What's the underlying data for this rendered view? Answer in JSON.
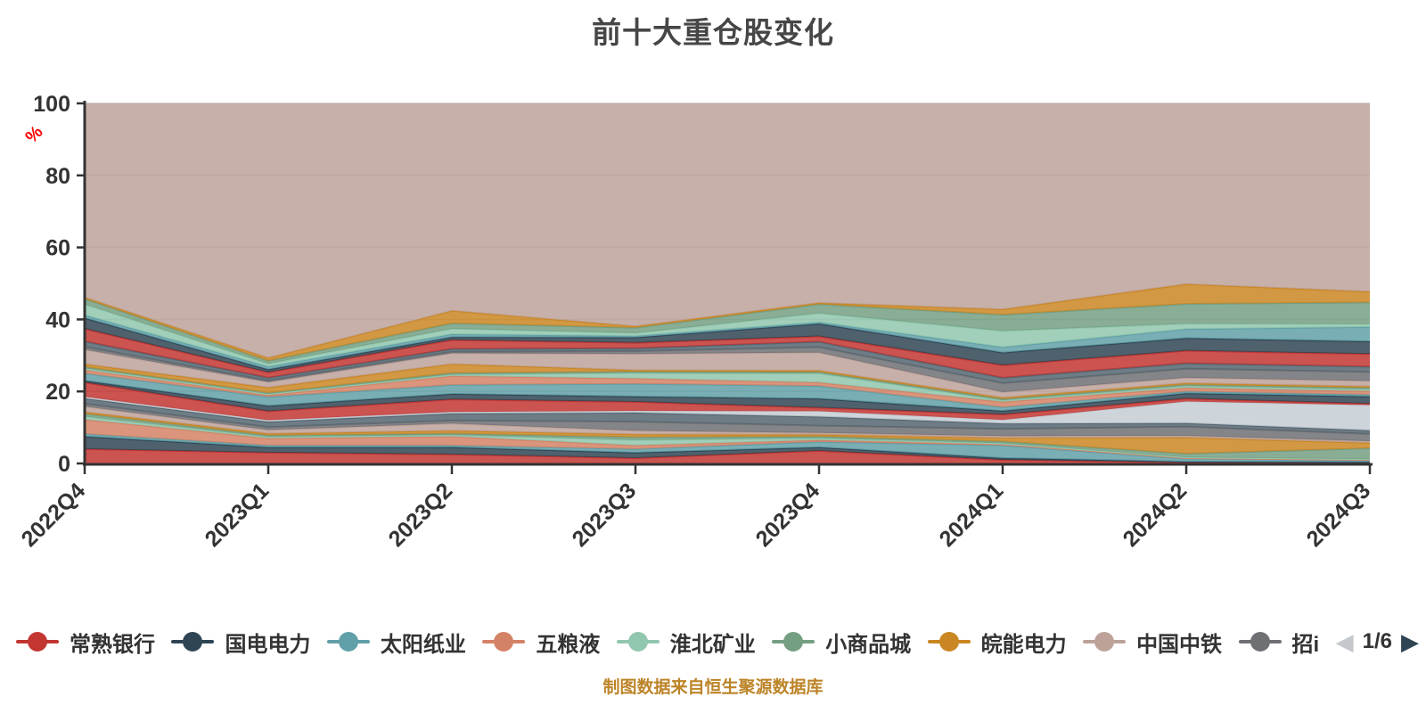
{
  "title": "前十大重仓股变化",
  "footer": "制图数据来自恒生聚源数据库",
  "y_axis": {
    "unit": "%",
    "ticks": [
      0,
      20,
      40,
      60,
      80,
      100
    ],
    "max": 100
  },
  "legend": {
    "items": [
      {
        "name": "常熟银行",
        "color": "#c23531"
      },
      {
        "name": "国电电力",
        "color": "#2f4554"
      },
      {
        "name": "太阳纸业",
        "color": "#61a0a8"
      },
      {
        "name": "五粮液",
        "color": "#d48265"
      },
      {
        "name": "淮北矿业",
        "color": "#91c7ae"
      },
      {
        "name": "小商品城",
        "color": "#749f83"
      },
      {
        "name": "皖能电力",
        "color": "#ca8622"
      },
      {
        "name": "中国中铁",
        "color": "#bda29a"
      },
      {
        "name": "招i",
        "color": "#6e7074"
      }
    ],
    "pager": {
      "prev_icon": "◀",
      "page": "1/6",
      "next_icon": "▶",
      "prev_color": "#c4c8cc",
      "next_color": "#2f4554"
    }
  },
  "chart_data": {
    "type": "area",
    "stacked": true,
    "x": [
      "2022Q4",
      "2023Q1",
      "2023Q2",
      "2023Q3",
      "2023Q4",
      "2024Q1",
      "2024Q2",
      "2024Q3"
    ],
    "ylim": [
      0,
      100
    ],
    "grid": true,
    "grid_color": "#cccccc",
    "axis_color": "#333333",
    "legend_position": "bottom",
    "palette": [
      "#c23531",
      "#2f4554",
      "#61a0a8",
      "#d48265",
      "#91c7ae",
      "#749f83",
      "#ca8622",
      "#bda29a",
      "#6e7074",
      "#546570",
      "#c4ccd3"
    ],
    "top_fill": {
      "color": "#bda29a",
      "to": 100
    },
    "series": [
      {
        "name": "常熟银行",
        "color": "#c23531",
        "values": [
          4,
          3,
          2.5,
          1.5,
          3.5,
          1,
          0.3,
          0.2
        ]
      },
      {
        "name": "国电电力",
        "color": "#2f4554",
        "values": [
          3.5,
          1.5,
          2,
          1.5,
          1,
          0.5,
          0.2,
          0.2
        ]
      },
      {
        "name": "太阳纸业",
        "color": "#61a0a8",
        "values": [
          0.7,
          0.5,
          0.5,
          1,
          1.5,
          3.5,
          0.8,
          0.4
        ]
      },
      {
        "name": "五粮液",
        "color": "#d48265",
        "values": [
          4,
          2,
          2.5,
          1,
          0.5,
          0.3,
          0.2,
          0.2
        ]
      },
      {
        "name": "淮北矿业",
        "color": "#91c7ae",
        "values": [
          0.8,
          0.4,
          0.4,
          1.5,
          0.5,
          0.3,
          0.2,
          0.2
        ]
      },
      {
        "name": "小商品城",
        "color": "#749f83",
        "values": [
          0.8,
          0.4,
          0.4,
          0.8,
          0.5,
          0.5,
          1,
          3
        ]
      },
      {
        "name": "皖能电力",
        "color": "#ca8622",
        "values": [
          0.5,
          0.5,
          0.8,
          0.8,
          0.5,
          1,
          4.5,
          1.5
        ]
      },
      {
        "name": "中国中铁",
        "color": "#bda29a",
        "values": [
          1.5,
          1,
          2,
          1,
          0.5,
          0.5,
          0.5,
          0.5
        ]
      },
      {
        "name": "招i",
        "color": "#6e7074",
        "values": [
          0.8,
          0.8,
          0.8,
          2.5,
          2,
          2,
          2.5,
          2
        ]
      },
      {
        "name": "",
        "color": "#546570",
        "values": [
          1.5,
          1.5,
          2,
          2.5,
          2.5,
          1.5,
          1,
          1
        ]
      },
      {
        "name": "",
        "color": "#c4ccd3",
        "values": [
          0.4,
          0.4,
          0.4,
          0.5,
          1.5,
          1,
          6,
          7
        ]
      },
      {
        "name": "",
        "color": "#c23531",
        "values": [
          4,
          2.5,
          3.5,
          2.5,
          1,
          1.5,
          0.8,
          0.4
        ]
      },
      {
        "name": "",
        "color": "#2f4554",
        "values": [
          0.5,
          1.5,
          1.5,
          1.5,
          2.5,
          1,
          1.5,
          2
        ]
      },
      {
        "name": "",
        "color": "#61a0a8",
        "values": [
          2,
          2.5,
          2.5,
          3.5,
          3.5,
          1,
          0.5,
          0.5
        ]
      },
      {
        "name": "",
        "color": "#d48265",
        "values": [
          1,
          0.5,
          2.5,
          1.5,
          1,
          1.5,
          1,
          1
        ]
      },
      {
        "name": "",
        "color": "#91c7ae",
        "values": [
          0.4,
          0.3,
          0.4,
          1.5,
          2.5,
          0.4,
          0.5,
          0.5
        ]
      },
      {
        "name": "",
        "color": "#749f83",
        "values": [
          0.4,
          0.3,
          0.4,
          0.4,
          0.4,
          0.4,
          0.4,
          0.4
        ]
      },
      {
        "name": "",
        "color": "#ca8622",
        "values": [
          0.8,
          1.5,
          2.5,
          0.4,
          0.4,
          0.4,
          0.4,
          0.4
        ]
      },
      {
        "name": "",
        "color": "#bda29a",
        "values": [
          4,
          1.5,
          3,
          4.5,
          5,
          1.5,
          1.5,
          1.5
        ]
      },
      {
        "name": "",
        "color": "#6e7074",
        "values": [
          0.8,
          0.4,
          0.4,
          0.8,
          1.5,
          2.5,
          2.5,
          2.5
        ]
      },
      {
        "name": "",
        "color": "#546570",
        "values": [
          1.5,
          0.8,
          0.8,
          0.8,
          1.5,
          1.5,
          1.5,
          1.5
        ]
      },
      {
        "name": "",
        "color": "#c23531",
        "values": [
          3.5,
          1.5,
          2.5,
          1.5,
          1.5,
          3.5,
          3.5,
          3.5
        ]
      },
      {
        "name": "",
        "color": "#2f4554",
        "values": [
          3,
          0.8,
          0.8,
          1.5,
          3.5,
          3.5,
          3.5,
          3.5
        ]
      },
      {
        "name": "",
        "color": "#61a0a8",
        "values": [
          0.8,
          0.8,
          0.8,
          0.4,
          0.4,
          1.5,
          2.5,
          4
        ]
      },
      {
        "name": "",
        "color": "#91c7ae",
        "values": [
          3,
          0.8,
          1.5,
          0.8,
          2.5,
          4.5,
          1.5,
          0.8
        ]
      },
      {
        "name": "",
        "color": "#749f83",
        "values": [
          1.5,
          0.8,
          1.5,
          1.5,
          2.5,
          4.5,
          5.5,
          6
        ]
      },
      {
        "name": "",
        "color": "#ca8622",
        "values": [
          0.4,
          0.8,
          3.5,
          0.4,
          0.4,
          1.5,
          5.5,
          3
        ]
      }
    ]
  }
}
